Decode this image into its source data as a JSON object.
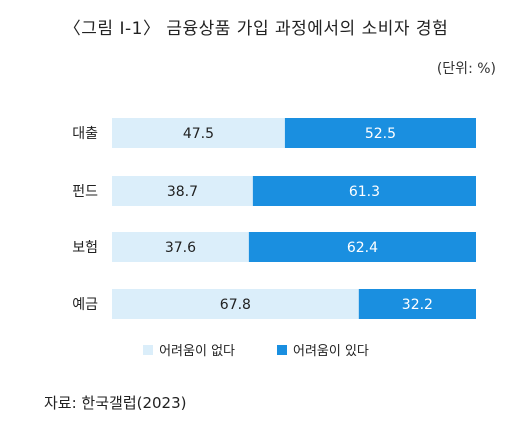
{
  "figure": {
    "title": "〈그림 Ⅰ-1〉 금융상품 가입 과정에서의 소비자 경험",
    "unit": "(단위: %)",
    "source": "자료: 한국갤럽(2023)"
  },
  "colors": {
    "no_difficulty": "#dbeefa",
    "difficulty": "#1a8fe0",
    "text_dark": "#222222",
    "text_light": "#ffffff"
  },
  "chart_data": {
    "type": "bar",
    "orientation": "horizontal",
    "stacked": true,
    "categories": [
      "대출",
      "펀드",
      "보험",
      "예금"
    ],
    "series": [
      {
        "name": "어려움이 없다",
        "values": [
          47.5,
          38.7,
          37.6,
          67.8
        ]
      },
      {
        "name": "어려움이 있다",
        "values": [
          52.5,
          61.3,
          62.4,
          32.2
        ]
      }
    ],
    "xlim": [
      0,
      100
    ],
    "grid": false,
    "legend": "bottom"
  }
}
